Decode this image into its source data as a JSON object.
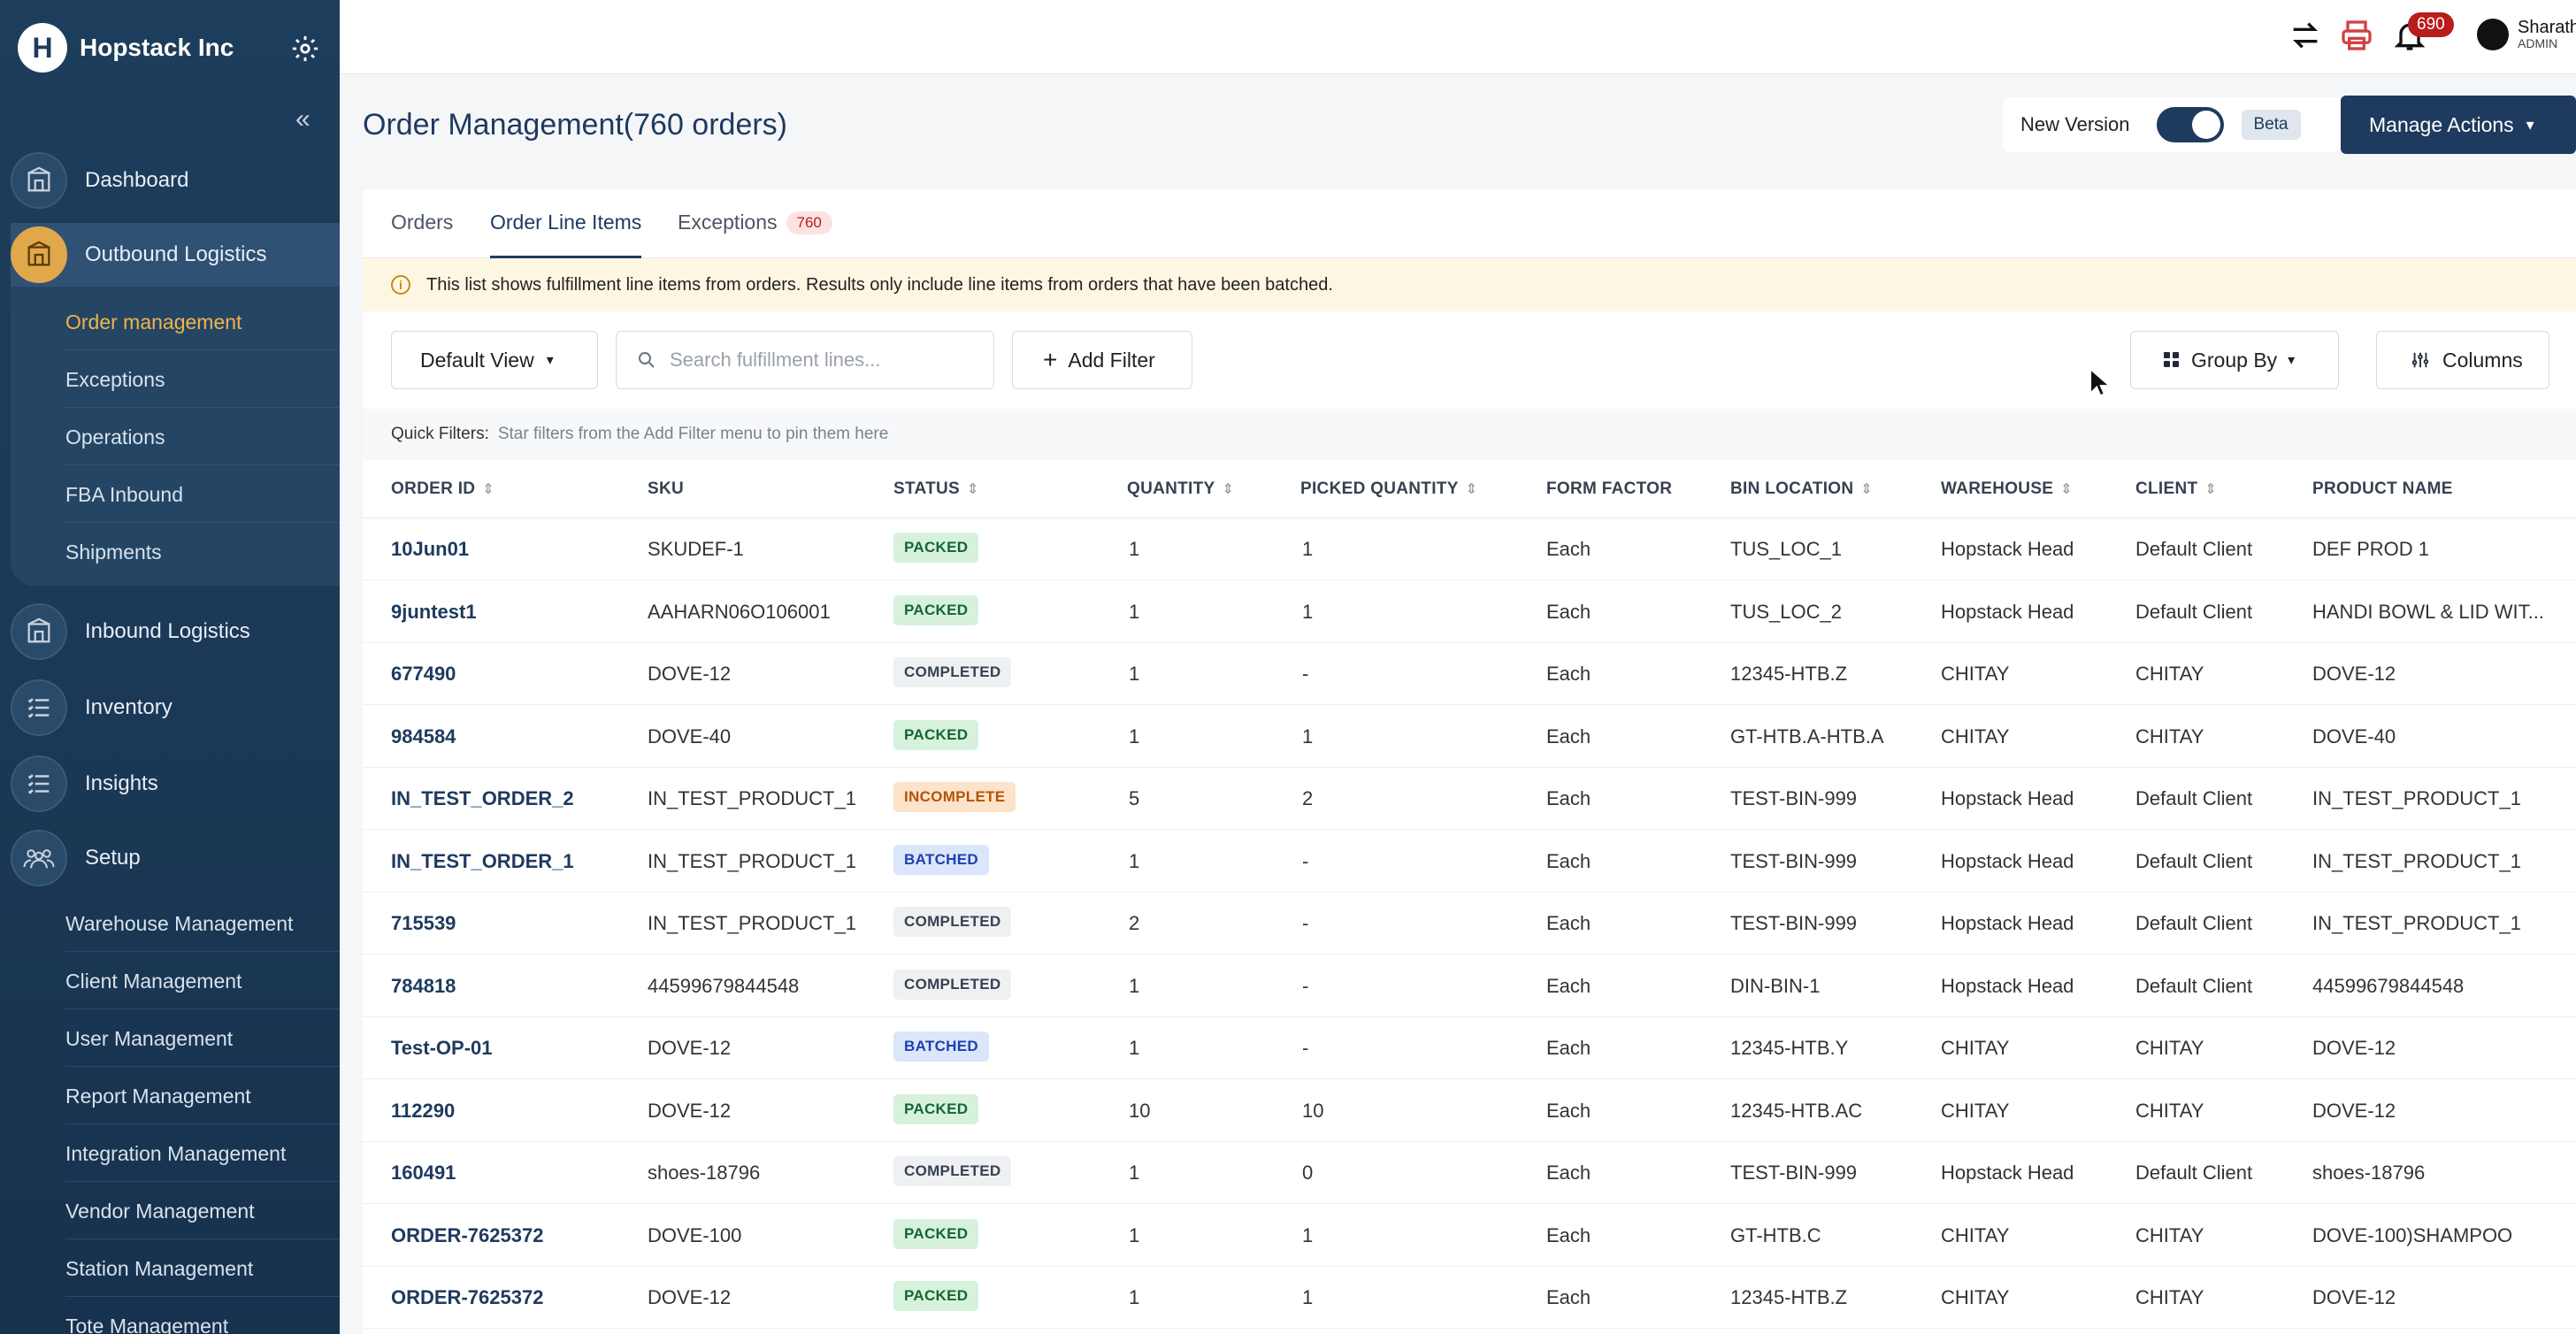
{
  "sidebar": {
    "brand": "Hopstack Inc",
    "nav": [
      {
        "label": "Dashboard"
      },
      {
        "label": "Outbound Logistics"
      },
      {
        "label": "Inbound Logistics"
      },
      {
        "label": "Inventory"
      },
      {
        "label": "Insights"
      },
      {
        "label": "Setup"
      }
    ],
    "outbound_sub": [
      "Order management",
      "Exceptions",
      "Operations",
      "FBA Inbound",
      "Shipments"
    ],
    "setup_sub": [
      "Warehouse Management",
      "Client Management",
      "User Management",
      "Report Management",
      "Integration Management",
      "Vendor Management",
      "Station Management",
      "Tote Management"
    ]
  },
  "topbar": {
    "notification_count": "690",
    "user_name": "Sharath",
    "user_role": "ADMIN"
  },
  "header": {
    "title": "Order Management(760 orders)",
    "new_version_label": "New Version",
    "beta_label": "Beta",
    "manage_actions_label": "Manage Actions"
  },
  "tabs": [
    {
      "label": "Orders"
    },
    {
      "label": "Order Line Items"
    },
    {
      "label": "Exceptions",
      "badge": "760"
    }
  ],
  "notice": "This list shows fulfillment line items from orders. Results only include line items from orders that have been batched.",
  "toolbar": {
    "view_label": "Default View",
    "search_placeholder": "Search fulfillment lines...",
    "add_filter_label": "Add Filter",
    "group_by_label": "Group By",
    "columns_label": "Columns"
  },
  "quick_filters": {
    "label": "Quick Filters:",
    "text": "Star filters from the Add Filter menu to pin them here"
  },
  "table": {
    "columns": [
      "ORDER ID",
      "SKU",
      "STATUS",
      "QUANTITY",
      "PICKED QUANTITY",
      "FORM FACTOR",
      "BIN LOCATION",
      "WAREHOUSE",
      "CLIENT",
      "PRODUCT NAME"
    ],
    "rows": [
      {
        "order_id": "10Jun01",
        "sku": "SKUDEF-1",
        "status": "PACKED",
        "quantity": "1",
        "picked": "1",
        "form": "Each",
        "bin": "TUS_LOC_1",
        "warehouse": "Hopstack Head",
        "client": "Default Client",
        "product": "DEF PROD 1"
      },
      {
        "order_id": "9juntest1",
        "sku": "AAHARN06O106001",
        "status": "PACKED",
        "quantity": "1",
        "picked": "1",
        "form": "Each",
        "bin": "TUS_LOC_2",
        "warehouse": "Hopstack Head",
        "client": "Default Client",
        "product": "HANDI BOWL & LID WIT..."
      },
      {
        "order_id": "677490",
        "sku": "DOVE-12",
        "status": "COMPLETED",
        "quantity": "1",
        "picked": "-",
        "form": "Each",
        "bin": "12345-HTB.Z",
        "warehouse": "CHITAY",
        "client": "CHITAY",
        "product": "DOVE-12"
      },
      {
        "order_id": "984584",
        "sku": "DOVE-40",
        "status": "PACKED",
        "quantity": "1",
        "picked": "1",
        "form": "Each",
        "bin": "GT-HTB.A-HTB.A",
        "warehouse": "CHITAY",
        "client": "CHITAY",
        "product": "DOVE-40"
      },
      {
        "order_id": "IN_TEST_ORDER_2",
        "sku": "IN_TEST_PRODUCT_1",
        "status": "INCOMPLETE",
        "quantity": "5",
        "picked": "2",
        "form": "Each",
        "bin": "TEST-BIN-999",
        "warehouse": "Hopstack Head",
        "client": "Default Client",
        "product": "IN_TEST_PRODUCT_1"
      },
      {
        "order_id": "IN_TEST_ORDER_1",
        "sku": "IN_TEST_PRODUCT_1",
        "status": "BATCHED",
        "quantity": "1",
        "picked": "-",
        "form": "Each",
        "bin": "TEST-BIN-999",
        "warehouse": "Hopstack Head",
        "client": "Default Client",
        "product": "IN_TEST_PRODUCT_1"
      },
      {
        "order_id": "715539",
        "sku": "IN_TEST_PRODUCT_1",
        "status": "COMPLETED",
        "quantity": "2",
        "picked": "-",
        "form": "Each",
        "bin": "TEST-BIN-999",
        "warehouse": "Hopstack Head",
        "client": "Default Client",
        "product": "IN_TEST_PRODUCT_1"
      },
      {
        "order_id": "784818",
        "sku": "44599679844548",
        "status": "COMPLETED",
        "quantity": "1",
        "picked": "-",
        "form": "Each",
        "bin": "DIN-BIN-1",
        "warehouse": "Hopstack Head",
        "client": "Default Client",
        "product": "44599679844548"
      },
      {
        "order_id": "Test-OP-01",
        "sku": "DOVE-12",
        "status": "BATCHED",
        "quantity": "1",
        "picked": "-",
        "form": "Each",
        "bin": "12345-HTB.Y",
        "warehouse": "CHITAY",
        "client": "CHITAY",
        "product": "DOVE-12"
      },
      {
        "order_id": "112290",
        "sku": "DOVE-12",
        "status": "PACKED",
        "quantity": "10",
        "picked": "10",
        "form": "Each",
        "bin": "12345-HTB.AC",
        "warehouse": "CHITAY",
        "client": "CHITAY",
        "product": "DOVE-12"
      },
      {
        "order_id": "160491",
        "sku": "shoes-18796",
        "status": "COMPLETED",
        "quantity": "1",
        "picked": "0",
        "form": "Each",
        "bin": "TEST-BIN-999",
        "warehouse": "Hopstack Head",
        "client": "Default Client",
        "product": "shoes-18796"
      },
      {
        "order_id": "ORDER-7625372",
        "sku": "DOVE-100",
        "status": "PACKED",
        "quantity": "1",
        "picked": "1",
        "form": "Each",
        "bin": "GT-HTB.C",
        "warehouse": "CHITAY",
        "client": "CHITAY",
        "product": "DOVE-100)SHAMPOO"
      },
      {
        "order_id": "ORDER-7625372",
        "sku": "DOVE-12",
        "status": "PACKED",
        "quantity": "1",
        "picked": "1",
        "form": "Each",
        "bin": "12345-HTB.Z",
        "warehouse": "CHITAY",
        "client": "CHITAY",
        "product": "DOVE-12"
      }
    ]
  }
}
